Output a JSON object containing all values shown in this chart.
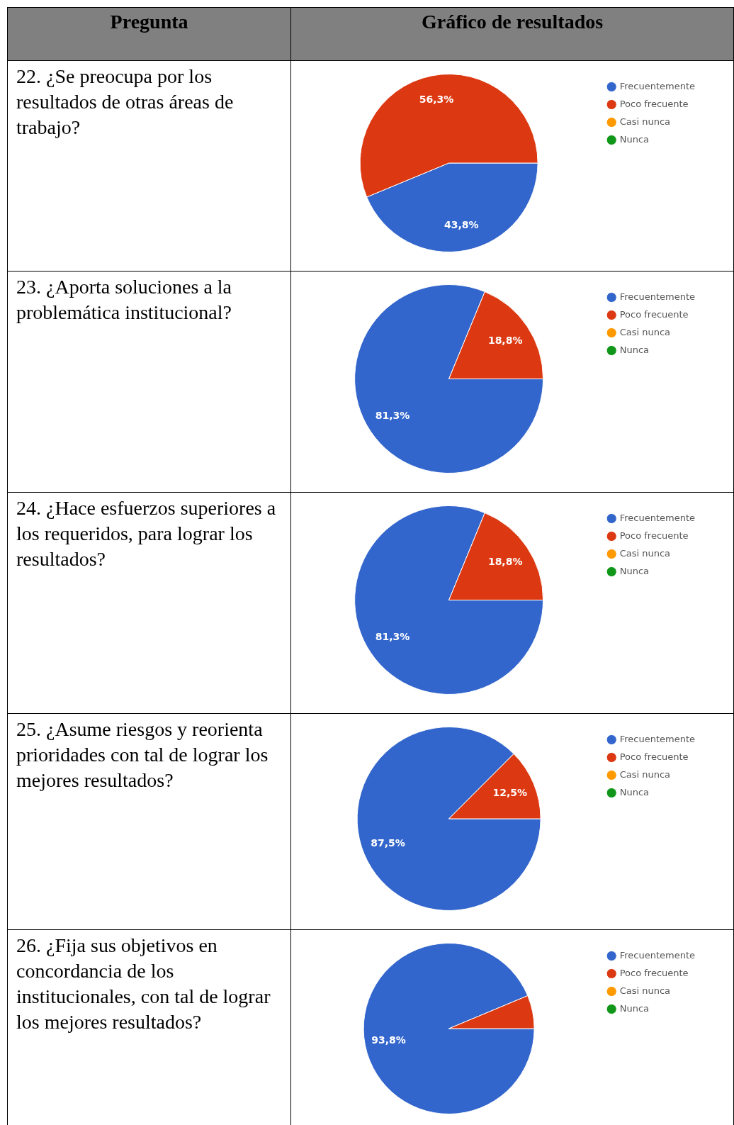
{
  "chart_data": [
    {
      "type": "pie",
      "title": "22. ¿Se preocupa por los resultados de otras áreas de trabajo?",
      "annotations": [
        "Pregunta",
        "Gráfico de resultados"
      ],
      "categories": [
        "Frecuentemente",
        "Poco frecuente",
        "Casi nunca",
        "Nunca"
      ],
      "values": [
        43.8,
        56.3,
        0,
        0
      ],
      "value_labels": [
        "43,8%",
        "56,3%",
        null,
        null
      ],
      "colors": [
        "#3366cc",
        "#dc3912",
        "#ff9900",
        "#109618"
      ],
      "legend": "top right"
    },
    {
      "type": "pie",
      "title": "23. ¿Aporta soluciones a la problemática institucional?",
      "categories": [
        "Frecuentemente",
        "Poco frecuente",
        "Casi nunca",
        "Nunca"
      ],
      "values": [
        81.3,
        18.8,
        0,
        0
      ],
      "value_labels": [
        "81,3%",
        "18,8%",
        null,
        null
      ],
      "colors": [
        "#3366cc",
        "#dc3912",
        "#ff9900",
        "#109618"
      ],
      "legend": "top right"
    },
    {
      "type": "pie",
      "title": "24. ¿Hace esfuerzos superiores a los requeridos, para lograr los resultados?",
      "categories": [
        "Frecuentemente",
        "Poco frecuente",
        "Casi nunca",
        "Nunca"
      ],
      "values": [
        81.3,
        18.8,
        0,
        0
      ],
      "value_labels": [
        "81,3%",
        "18,8%",
        null,
        null
      ],
      "colors": [
        "#3366cc",
        "#dc3912",
        "#ff9900",
        "#109618"
      ],
      "legend": "top right"
    },
    {
      "type": "pie",
      "title": "25. ¿Asume riesgos y reorienta prioridades con tal de lograr los mejores resultados?",
      "categories": [
        "Frecuentemente",
        "Poco frecuente",
        "Casi nunca",
        "Nunca"
      ],
      "values": [
        87.5,
        12.5,
        0,
        0
      ],
      "value_labels": [
        "87,5%",
        "12,5%",
        null,
        null
      ],
      "colors": [
        "#3366cc",
        "#dc3912",
        "#ff9900",
        "#109618"
      ],
      "legend": "top right"
    },
    {
      "type": "pie",
      "title": "26. ¿Fija sus objetivos en concordancia de los institucionales, con tal de lograr los mejores resultados?",
      "categories": [
        "Frecuentemente",
        "Poco frecuente",
        "Casi nunca",
        "Nunca"
      ],
      "values": [
        93.8,
        6.3,
        0,
        0
      ],
      "value_labels": [
        "93,8%",
        null,
        null,
        null
      ],
      "colors": [
        "#3366cc",
        "#dc3912",
        "#ff9900",
        "#109618"
      ],
      "legend": "top right"
    }
  ]
}
